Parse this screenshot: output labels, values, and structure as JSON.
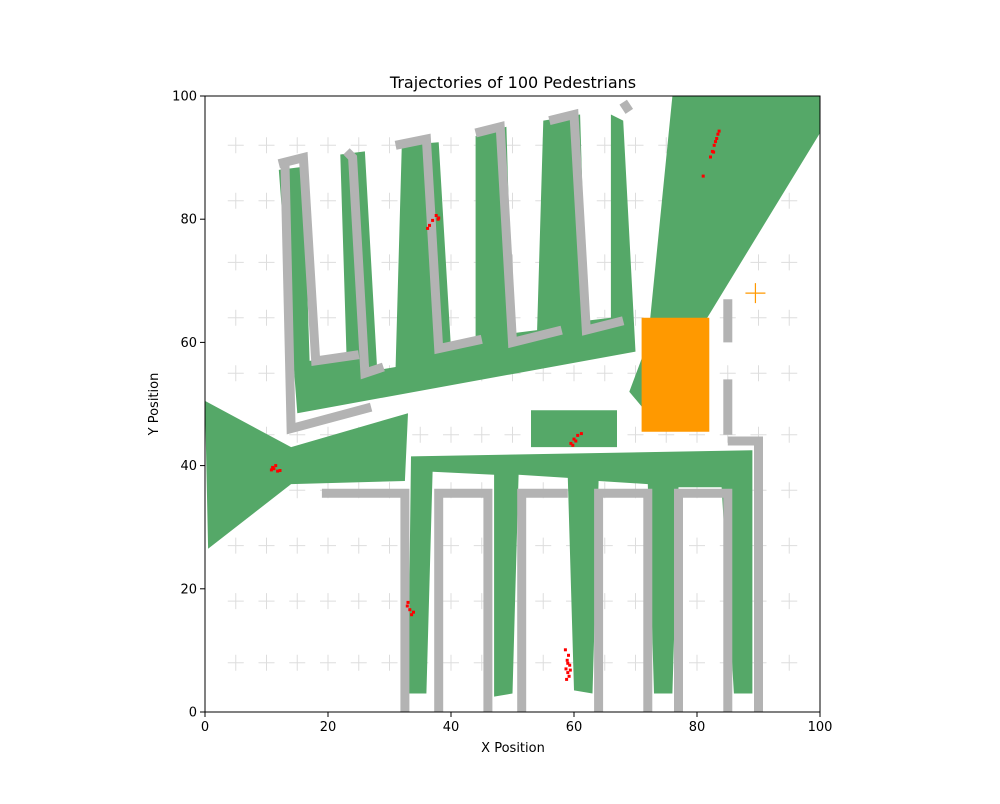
{
  "chart_data": {
    "type": "scatter",
    "title": "Trajectories of 100 Pedestrians",
    "xlabel": "X Position",
    "ylabel": "Y Position",
    "xlim": [
      0,
      100
    ],
    "ylim": [
      0,
      100
    ],
    "xticks": [
      "0",
      "20",
      "40",
      "60",
      "80",
      "100"
    ],
    "yticks": [
      "0",
      "20",
      "40",
      "60",
      "80",
      "100"
    ],
    "grid": false,
    "colors": {
      "walkable": "#55a868",
      "wall": "#b3b3b3",
      "obstacle": "#ff9900",
      "pedestrian": "#ff0000",
      "goal_marker": "#ff9900",
      "floor_marker": "#dddddd"
    },
    "walkable_areas": [
      [
        [
          12,
          88
        ],
        [
          16,
          88.5
        ],
        [
          17,
          57
        ],
        [
          23,
          58
        ],
        [
          22,
          90.5
        ],
        [
          26,
          91
        ],
        [
          28,
          55.5
        ],
        [
          31,
          56
        ],
        [
          32,
          92
        ],
        [
          38,
          92.5
        ],
        [
          40,
          59
        ],
        [
          44,
          60
        ],
        [
          44,
          93.5
        ],
        [
          49,
          95
        ],
        [
          50,
          61.5
        ],
        [
          54,
          62
        ],
        [
          55,
          96
        ],
        [
          61,
          97
        ],
        [
          62,
          63.5
        ],
        [
          66,
          64
        ],
        [
          66,
          97
        ],
        [
          68,
          96
        ],
        [
          70,
          58.5
        ],
        [
          15,
          48.5
        ]
      ],
      [
        [
          0,
          50.5
        ],
        [
          14,
          43
        ],
        [
          33,
          48.5
        ],
        [
          32.5,
          37.5
        ],
        [
          14,
          37
        ],
        [
          0.5,
          26.5
        ]
      ],
      [
        [
          33.5,
          41.5
        ],
        [
          89,
          42.5
        ],
        [
          89,
          3
        ],
        [
          86,
          3
        ],
        [
          84,
          36.5
        ],
        [
          77,
          36.5
        ],
        [
          76,
          3
        ],
        [
          73,
          3
        ],
        [
          72,
          37
        ],
        [
          64,
          37.5
        ],
        [
          63,
          3
        ],
        [
          60,
          3.5
        ],
        [
          59,
          38
        ],
        [
          51,
          38.5
        ],
        [
          50,
          3
        ],
        [
          47,
          2.5
        ],
        [
          47,
          38.5
        ],
        [
          37,
          39
        ],
        [
          36,
          3
        ],
        [
          33,
          3
        ]
      ],
      [
        [
          53,
          49
        ],
        [
          67,
          49
        ],
        [
          67,
          43
        ],
        [
          53,
          43
        ]
      ],
      [
        [
          76,
          100
        ],
        [
          100,
          100
        ],
        [
          100,
          94
        ],
        [
          78,
          58
        ],
        [
          75,
          52
        ],
        [
          74,
          46
        ],
        [
          69,
          52
        ],
        [
          72,
          60
        ]
      ]
    ],
    "wall_segments": [
      [
        [
          12,
          89
        ],
        [
          16,
          90
        ],
        [
          18,
          57
        ],
        [
          25,
          58
        ]
      ],
      [
        [
          23,
          91
        ],
        [
          24,
          90
        ],
        [
          26,
          55
        ],
        [
          29,
          56
        ]
      ],
      [
        [
          31,
          92
        ],
        [
          36,
          93
        ],
        [
          38,
          59
        ],
        [
          45,
          60.5
        ]
      ],
      [
        [
          44,
          94
        ],
        [
          48,
          95
        ],
        [
          50,
          60
        ],
        [
          58,
          62
        ]
      ],
      [
        [
          56,
          96
        ],
        [
          60,
          97
        ],
        [
          62,
          62
        ],
        [
          68,
          63.5
        ]
      ],
      [
        [
          69,
          97.5
        ],
        [
          68,
          99
        ]
      ],
      [
        [
          13,
          89.5
        ],
        [
          14,
          46
        ],
        [
          27,
          49.5
        ]
      ],
      [
        [
          19,
          35.5
        ],
        [
          32.5,
          35.5
        ],
        [
          32.5,
          0
        ]
      ],
      [
        [
          38,
          0
        ],
        [
          38,
          35.5
        ],
        [
          46,
          35.5
        ],
        [
          46,
          0
        ]
      ],
      [
        [
          51.5,
          0
        ],
        [
          51.5,
          35.5
        ],
        [
          59,
          35.5
        ]
      ],
      [
        [
          64,
          0
        ],
        [
          64,
          35.5
        ],
        [
          72,
          35.5
        ],
        [
          72,
          0
        ]
      ],
      [
        [
          77,
          0
        ],
        [
          77,
          35.5
        ],
        [
          85,
          35.5
        ],
        [
          85,
          0
        ]
      ],
      [
        [
          90,
          0
        ],
        [
          90,
          44
        ],
        [
          85,
          44
        ]
      ],
      [
        [
          85,
          45
        ],
        [
          85,
          54
        ]
      ],
      [
        [
          85,
          60
        ],
        [
          85,
          67
        ]
      ]
    ],
    "obstacles": [
      [
        [
          71,
          64
        ],
        [
          82,
          64
        ],
        [
          82,
          45.5
        ],
        [
          71,
          45.5
        ]
      ]
    ],
    "goal_marker": [
      89.5,
      68
    ],
    "floor_markers_x": [
      5,
      10,
      15,
      20,
      25,
      30,
      35,
      40,
      45,
      50,
      55,
      60,
      65,
      70,
      75,
      80,
      85,
      90,
      95
    ],
    "floor_markers_y": [
      8,
      18,
      27,
      36,
      45,
      55,
      64,
      73,
      83,
      92
    ],
    "pedestrians": {
      "name": "",
      "x": [
        11.2,
        11.8,
        10.8,
        11.5,
        12.2,
        11.0,
        37.0,
        37.6,
        36.5,
        38.0,
        36.2,
        37.9,
        60.0,
        60.6,
        59.5,
        61.2,
        60.3,
        59.8,
        32.9,
        33.3,
        33.6,
        33.0,
        33.9,
        58.6,
        59.1,
        58.9,
        59.3,
        58.7,
        59.0,
        59.2,
        58.8,
        59.4,
        59.0,
        82.8,
        83.2,
        83.6,
        82.5,
        83.0,
        83.4,
        82.2,
        81.0,
        82.7
      ],
      "y": [
        39.5,
        39.1,
        39.3,
        40.0,
        39.2,
        39.7,
        79.8,
        80.6,
        79.0,
        80.2,
        78.5,
        80.0,
        44.3,
        44.9,
        43.6,
        45.2,
        44.0,
        43.3,
        17.2,
        16.6,
        15.8,
        17.8,
        16.2,
        10.1,
        9.2,
        8.4,
        7.6,
        7.0,
        6.4,
        5.8,
        5.3,
        6.8,
        7.9,
        92.0,
        93.1,
        94.3,
        91.0,
        92.6,
        93.8,
        90.1,
        87.0,
        90.9
      ]
    }
  }
}
